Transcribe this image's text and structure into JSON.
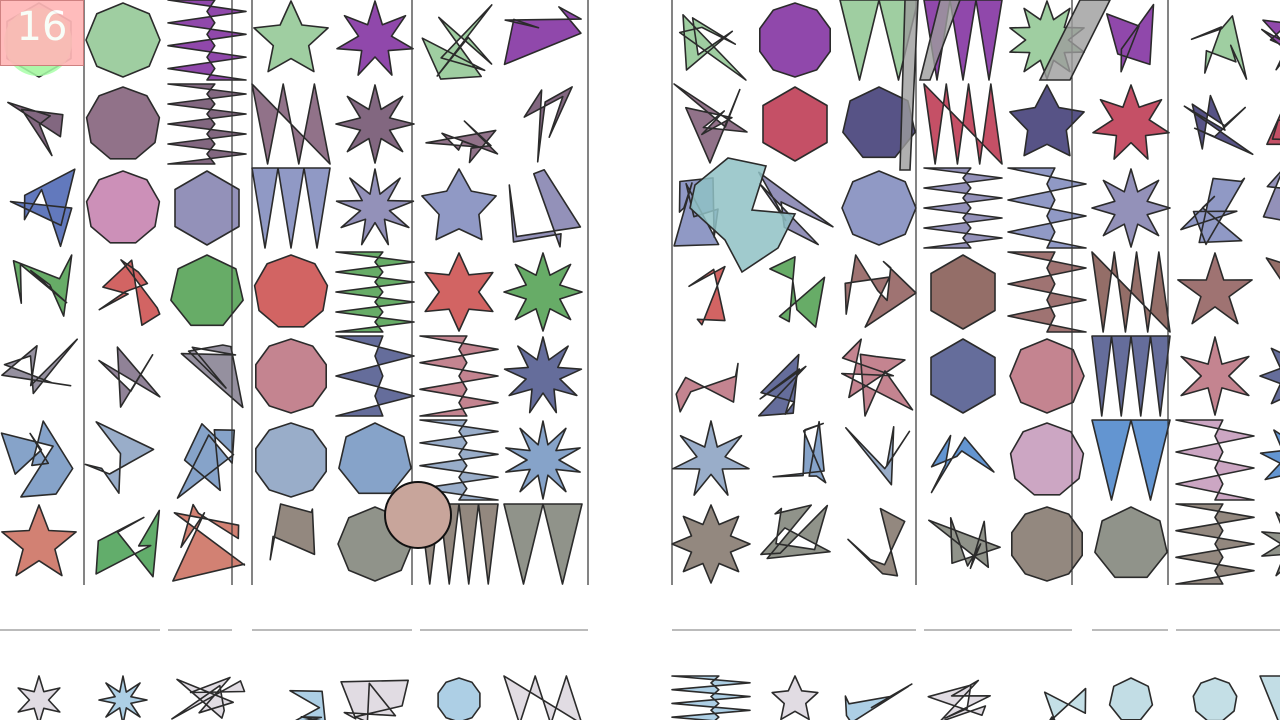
{
  "game": {
    "score": "16",
    "column_groups": [
      [
        "col-1",
        "col-2",
        "col-3"
      ],
      [
        "col-4",
        "col-5",
        "col-6",
        "col-7"
      ],
      [
        "col-8",
        "col-9",
        "col-10",
        "col-11",
        "col-12"
      ],
      [
        "col-13",
        "col-14",
        "col-15"
      ]
    ],
    "rows": 8,
    "palette": {
      "row-1": [
        "#9acb9c",
        "#cbc7a8",
        "#8a3ea6",
        "#d6575d"
      ],
      "row-2": [
        "#4e4a80",
        "#7b5f79",
        "#c2475e",
        "#8b6a83"
      ],
      "row-3": [
        "#5a72b9",
        "#8d8bb5",
        "#c98ab4",
        "#8a93c2"
      ],
      "row-4": [
        "#5fa85f",
        "#8e6660",
        "#d05c5b",
        "#9a6b6a"
      ],
      "row-5": [
        "#5d6596",
        "#8a7b91",
        "#c17d8a",
        "#8f8a9a"
      ],
      "row-6": [
        "#5b8fcf",
        "#94a9c6",
        "#c9a1c0",
        "#7f9ec6"
      ],
      "row-7": [
        "#5aa963",
        "#8d8278",
        "#d07a6c",
        "#8a8d84"
      ],
      "row-8": [
        "#6aa8cf",
        "#93c4d1",
        "#c9bfcc",
        "#90c1cf"
      ]
    },
    "floating_pieces": [
      {
        "name": "floating-piece-teal",
        "color": "#8fc1c4"
      },
      {
        "name": "floating-piece-gray-bar",
        "color": "#9c9c9c"
      },
      {
        "name": "floating-piece-tan-circle",
        "color": "#c8a59b"
      },
      {
        "name": "cursor-pink-blob",
        "color": "#a8ffa8"
      }
    ]
  }
}
